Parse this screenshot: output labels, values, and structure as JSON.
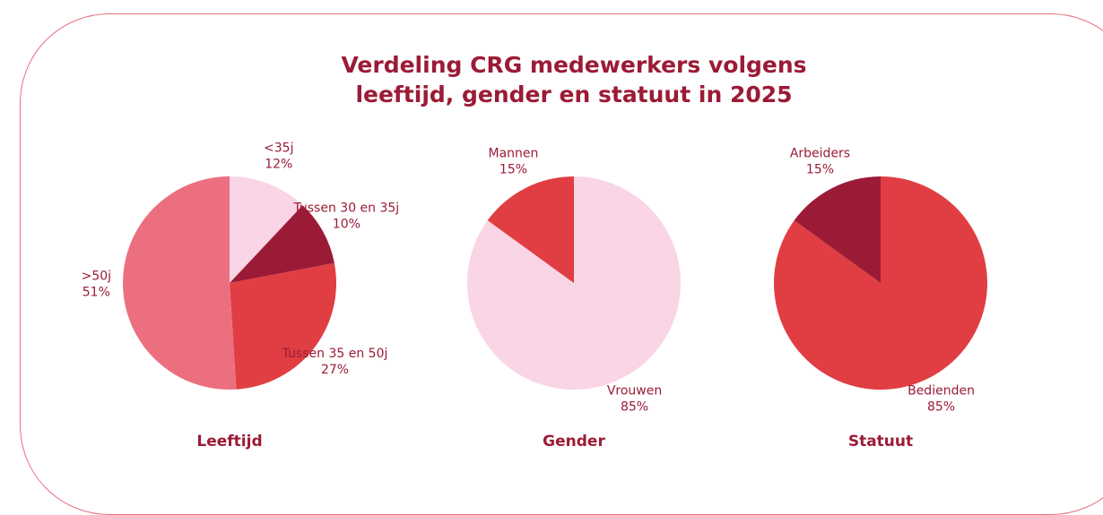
{
  "title": "Verdeling CRG medewerkers volgens leeftijd, gender en statuut in 2025",
  "chart_data": [
    {
      "type": "pie",
      "title": "Leeftijd",
      "categories": [
        "<35j",
        "Tussen 30 en 35j",
        "Tussen 35 en 50j",
        ">50j"
      ],
      "values": [
        12,
        10,
        27,
        51
      ],
      "value_labels": [
        "12%",
        "10%",
        "27%",
        "51%"
      ],
      "colors": [
        "#f9d5e5",
        "#9b1b36",
        "#e03e43",
        "#ec6f80"
      ]
    },
    {
      "type": "pie",
      "title": "Gender",
      "categories": [
        "Vrouwen",
        "Mannen"
      ],
      "values": [
        85,
        15
      ],
      "value_labels": [
        "85%",
        "15%"
      ],
      "colors": [
        "#f9d5e5",
        "#e03e43"
      ]
    },
    {
      "type": "pie",
      "title": "Statuut",
      "categories": [
        "Bedienden",
        "Arbeiders"
      ],
      "values": [
        85,
        15
      ],
      "value_labels": [
        "85%",
        "15%"
      ],
      "colors": [
        "#e03e43",
        "#9b1b36"
      ]
    }
  ]
}
